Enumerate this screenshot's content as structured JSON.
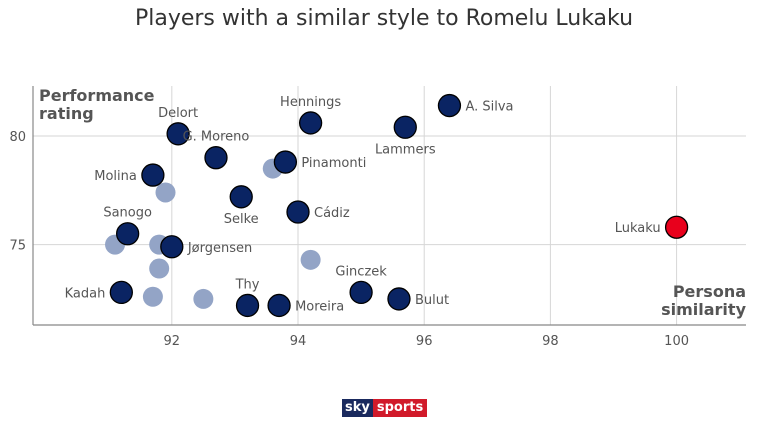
{
  "chart_data": {
    "type": "scatter",
    "title": "Players with a similar style to Romelu Lukaku",
    "xlabel": [
      "Persona",
      "similarity"
    ],
    "ylabel": [
      "Performance",
      "rating"
    ],
    "xlim": [
      89.8,
      101.1
    ],
    "ylim": [
      71.3,
      82.3
    ],
    "xticks": [
      92,
      94,
      96,
      98,
      100
    ],
    "yticks": [
      75,
      80
    ],
    "grid": true,
    "colors": {
      "highlight": "#e8001c",
      "labeled": "#0a2463",
      "unlabeled": "#93a4c6",
      "grid": "#d6d6d6"
    },
    "points": [
      {
        "label": "A. Silva",
        "x": 96.4,
        "y": 81.4,
        "group": "labeled",
        "label_pos": "right"
      },
      {
        "label": "Hennings",
        "x": 94.2,
        "y": 80.6,
        "group": "labeled",
        "label_pos": "above"
      },
      {
        "label": "Lammers",
        "x": 95.7,
        "y": 80.4,
        "group": "labeled",
        "label_pos": "below"
      },
      {
        "label": "Delort",
        "x": 92.1,
        "y": 80.1,
        "group": "labeled",
        "label_pos": "above"
      },
      {
        "label": "G. Moreno",
        "x": 92.7,
        "y": 79.0,
        "group": "labeled",
        "label_pos": "above"
      },
      {
        "label": "Pinamonti",
        "x": 93.8,
        "y": 78.8,
        "group": "labeled",
        "label_pos": "right"
      },
      {
        "label": "Molina",
        "x": 91.7,
        "y": 78.2,
        "group": "labeled",
        "label_pos": "left"
      },
      {
        "label": "Selke",
        "x": 93.1,
        "y": 77.2,
        "group": "labeled",
        "label_pos": "below"
      },
      {
        "label": "Cádiz",
        "x": 94.0,
        "y": 76.5,
        "group": "labeled",
        "label_pos": "right"
      },
      {
        "label": "Sanogo",
        "x": 91.3,
        "y": 75.5,
        "group": "labeled",
        "label_pos": "above"
      },
      {
        "label": "Jørgensen",
        "x": 92.0,
        "y": 74.9,
        "group": "labeled",
        "label_pos": "right"
      },
      {
        "label": "Lukaku",
        "x": 100.0,
        "y": 75.8,
        "group": "highlight",
        "label_pos": "left"
      },
      {
        "label": "Ginczek",
        "x": 95.0,
        "y": 72.8,
        "group": "labeled",
        "label_pos": "above"
      },
      {
        "label": "Kadah",
        "x": 91.2,
        "y": 72.8,
        "group": "labeled",
        "label_pos": "left"
      },
      {
        "label": "Bulut",
        "x": 95.6,
        "y": 72.5,
        "group": "labeled",
        "label_pos": "right"
      },
      {
        "label": "Thy",
        "x": 93.2,
        "y": 72.2,
        "group": "labeled",
        "label_pos": "above"
      },
      {
        "label": "Moreira",
        "x": 93.7,
        "y": 72.2,
        "group": "labeled",
        "label_pos": "right"
      },
      {
        "label": "",
        "x": 93.6,
        "y": 78.5,
        "group": "unlabeled"
      },
      {
        "label": "",
        "x": 91.9,
        "y": 77.4,
        "group": "unlabeled"
      },
      {
        "label": "",
        "x": 91.1,
        "y": 75.0,
        "group": "unlabeled"
      },
      {
        "label": "",
        "x": 91.8,
        "y": 75.0,
        "group": "unlabeled"
      },
      {
        "label": "",
        "x": 91.8,
        "y": 73.9,
        "group": "unlabeled"
      },
      {
        "label": "",
        "x": 94.2,
        "y": 74.3,
        "group": "unlabeled"
      },
      {
        "label": "",
        "x": 91.7,
        "y": 72.6,
        "group": "unlabeled"
      },
      {
        "label": "",
        "x": 92.5,
        "y": 72.5,
        "group": "unlabeled"
      }
    ]
  },
  "branding": {
    "logo_left": "sky",
    "logo_right": "sports"
  }
}
